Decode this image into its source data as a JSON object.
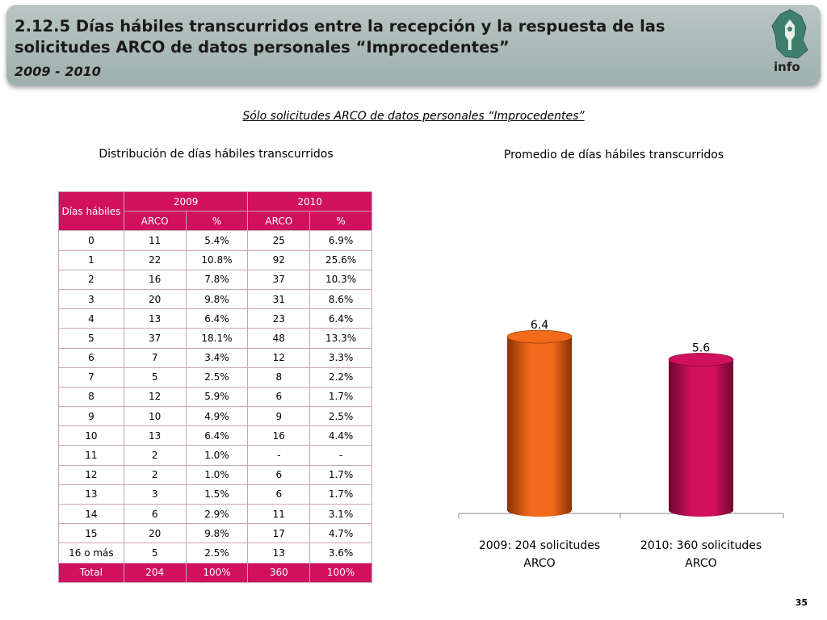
{
  "header": {
    "title": "2.12.5 Días hábiles transcurridos entre la recepción y la respuesta de las solicitudes ARCO de datos personales “Improcedentes”",
    "period": "2009 - 2010",
    "logo_text": "info"
  },
  "subtitle": "Sólo solicitudes ARCO de datos personales “Improcedentes”",
  "left_title": "Distribución de días hábiles transcurridos",
  "right_title": "Promedio de días hábiles transcurridos",
  "table": {
    "col_dias": "Días hábiles",
    "year_a": "2009",
    "year_b": "2010",
    "sub_arco": "ARCO",
    "sub_pct": "%",
    "rows": [
      [
        "0",
        "11",
        "5.4%",
        "25",
        "6.9%"
      ],
      [
        "1",
        "22",
        "10.8%",
        "92",
        "25.6%"
      ],
      [
        "2",
        "16",
        "7.8%",
        "37",
        "10.3%"
      ],
      [
        "3",
        "20",
        "9.8%",
        "31",
        "8.6%"
      ],
      [
        "4",
        "13",
        "6.4%",
        "23",
        "6.4%"
      ],
      [
        "5",
        "37",
        "18.1%",
        "48",
        "13.3%"
      ],
      [
        "6",
        "7",
        "3.4%",
        "12",
        "3.3%"
      ],
      [
        "7",
        "5",
        "2.5%",
        "8",
        "2.2%"
      ],
      [
        "8",
        "12",
        "5.9%",
        "6",
        "1.7%"
      ],
      [
        "9",
        "10",
        "4.9%",
        "9",
        "2.5%"
      ],
      [
        "10",
        "13",
        "6.4%",
        "16",
        "4.4%"
      ],
      [
        "11",
        "2",
        "1.0%",
        "-",
        "-"
      ],
      [
        "12",
        "2",
        "1.0%",
        "6",
        "1.7%"
      ],
      [
        "13",
        "3",
        "1.5%",
        "6",
        "1.7%"
      ],
      [
        "14",
        "6",
        "2.9%",
        "11",
        "3.1%"
      ],
      [
        "15",
        "20",
        "9.8%",
        "17",
        "4.7%"
      ],
      [
        "16 o más",
        "5",
        "2.5%",
        "13",
        "3.6%"
      ]
    ],
    "total": [
      "Total",
      "204",
      "100%",
      "360",
      "100%"
    ]
  },
  "chart_data": {
    "type": "bar",
    "categories": [
      "2009: 204 solicitudes ARCO",
      "2010: 360 solicitudes ARCO"
    ],
    "values": [
      6.4,
      5.6
    ],
    "value_labels": [
      "6.4",
      "5.6"
    ],
    "colors": [
      "#f26a1b",
      "#d1105e"
    ],
    "dark_colors": [
      "#8a3204",
      "#6e0631"
    ],
    "title": "Promedio de días hábiles transcurridos",
    "ylim": [
      0,
      7.5
    ],
    "grid": false
  },
  "page_number": "35"
}
